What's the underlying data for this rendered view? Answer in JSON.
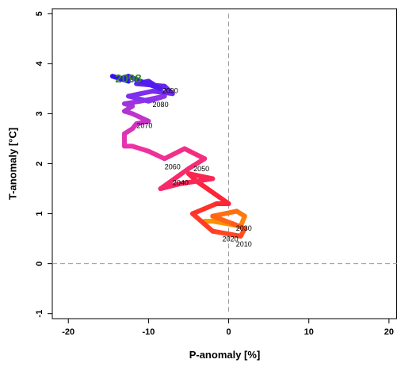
{
  "chart_data": {
    "type": "line",
    "xlabel": "P-anomaly [%]",
    "ylabel": "T-anomaly [°C]",
    "xlim": [
      -22,
      21
    ],
    "ylim": [
      -1.1,
      5.1
    ],
    "x_ticks": [
      -20,
      -10,
      0,
      10,
      20
    ],
    "x_tick_labels": [
      "-20",
      "-10",
      "0",
      "10",
      "20"
    ],
    "y_ticks": [
      -1,
      0,
      1,
      2,
      3,
      4,
      5
    ],
    "y_tick_labels": [
      "-1",
      "0",
      "1",
      "2",
      "3",
      "4",
      "5"
    ],
    "reference_lines": {
      "x": 0,
      "y": 0,
      "style": "dashed",
      "color": "#999999"
    },
    "grid": false,
    "legend": "none",
    "color_gradient": [
      "#ff9900",
      "#ff2233",
      "#ee33aa",
      "#8833ee",
      "#3311ee"
    ],
    "trajectory": {
      "x": [
        -3.0,
        -2.0,
        1.5,
        2.0,
        1.0,
        -2.0,
        0.5,
        2.0,
        1.5,
        -2.0,
        -4.5,
        -1.5,
        0.0,
        -4.0,
        -5.0,
        -2.0,
        -6.0,
        -8.5,
        -5.0,
        -3.0,
        -5.5,
        -8.0,
        -10.0,
        -12.0,
        -13.0,
        -13.0,
        -12.0,
        -11.5,
        -10.0,
        -12.0,
        -13.0,
        -12.0,
        -13.0,
        -11.0,
        -8.0,
        -10.0,
        -12.5,
        -9.5,
        -7.0,
        -8.0,
        -11.5,
        -10.0,
        -8.5,
        -11.0,
        -12.5,
        -13.5,
        -12.5,
        -14.5
      ],
      "y": [
        0.85,
        0.85,
        0.75,
        0.95,
        1.05,
        0.95,
        0.8,
        0.7,
        0.55,
        0.65,
        1.0,
        1.2,
        1.2,
        1.65,
        1.8,
        1.7,
        1.6,
        1.5,
        1.9,
        2.1,
        2.3,
        2.1,
        2.25,
        2.35,
        2.35,
        2.6,
        2.7,
        2.8,
        2.85,
        3.0,
        3.05,
        3.15,
        3.2,
        3.25,
        3.35,
        3.25,
        3.35,
        3.45,
        3.4,
        3.55,
        3.6,
        3.65,
        3.5,
        3.65,
        3.75,
        3.7,
        3.65,
        3.75
      ]
    },
    "annotations": [
      {
        "text": "2010",
        "x": 1.9,
        "y": 0.39
      },
      {
        "text": "2020",
        "x": 0.2,
        "y": 0.49
      },
      {
        "text": "2030",
        "x": 1.9,
        "y": 0.71
      },
      {
        "text": "2040",
        "x": -6.0,
        "y": 1.62
      },
      {
        "text": "2050",
        "x": -3.4,
        "y": 1.9
      },
      {
        "text": "2060",
        "x": -7.0,
        "y": 1.94
      },
      {
        "text": "2070",
        "x": -10.5,
        "y": 2.76
      },
      {
        "text": "2080",
        "x": -8.5,
        "y": 3.18
      },
      {
        "text": "2090",
        "x": -7.3,
        "y": 3.46
      }
    ],
    "end_label": {
      "text": "2098",
      "x": -12.5,
      "y": 3.7,
      "color": "#2e8b1e"
    }
  }
}
